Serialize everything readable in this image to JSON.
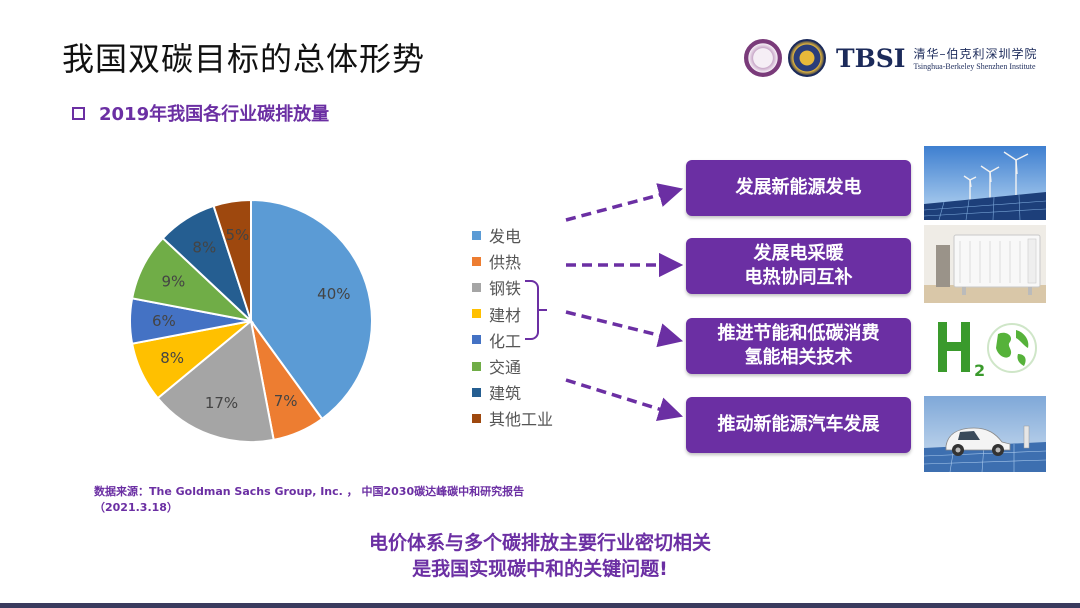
{
  "page": {
    "title": "我国双碳目标的总体形势",
    "subtitle": "2019年我国各行业碳排放量",
    "source_line1": "数据来源：The Goldman Sachs Group, Inc. ， 中国2030碳达峰碳中和研究报告",
    "source_line2": "（2021.3.18）",
    "conclusion_line1": "电价体系与多个碳排放主要行业密切相关",
    "conclusion_line2": "是我国实现碳中和的关键问题!"
  },
  "logo": {
    "brand": "TBSI",
    "cn_name": "清华–伯克利深圳学院",
    "en_name": "Tsinghua-Berkeley Shenzhen Institute"
  },
  "actions": [
    {
      "line1": "发展新能源发电",
      "line2": "",
      "photo": "wind-turbines-solar-panels"
    },
    {
      "line1": "发展电采暖",
      "line2": "电热协同互补",
      "photo": "electric-heater"
    },
    {
      "line1": "推进节能和低碳消费",
      "line2": "氢能相关技术",
      "photo": "h2-globe"
    },
    {
      "line1": "推动新能源汽车发展",
      "line2": "",
      "photo": "electric-car"
    }
  ],
  "colors": {
    "accent": "#6b2fa3",
    "title": "#111111"
  },
  "chart_data": {
    "type": "pie",
    "categories": [
      "发电",
      "供热",
      "钢铁",
      "建材",
      "化工",
      "交通",
      "建筑",
      "其他工业"
    ],
    "values": [
      40,
      7,
      17,
      8,
      6,
      9,
      8,
      5
    ],
    "labels": [
      "40%",
      "7%",
      "17%",
      "8%",
      "6%",
      "9%",
      "8%",
      "5%"
    ],
    "colors": [
      "#5b9bd5",
      "#ed7d31",
      "#a5a5a5",
      "#ffc000",
      "#4472c4",
      "#70ad47",
      "#255e91",
      "#9e480e"
    ],
    "start": "12 o'clock",
    "direction": "clockwise",
    "legend": "right"
  }
}
